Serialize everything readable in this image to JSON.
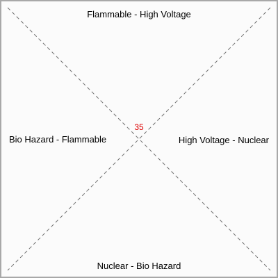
{
  "diagram": {
    "regions": {
      "top": "Flammable - High Voltage",
      "right": "High Voltage - Nuclear",
      "bottom": "Nuclear - Bio Hazard",
      "left": "Bio Hazard - Flammable"
    },
    "center_value": "35",
    "colors": {
      "frame_border": "#a8a8a8",
      "background": "#fbfbfb",
      "diagonal_line": "#707070",
      "label_text": "#000000",
      "center_value": "#dd0000"
    }
  }
}
